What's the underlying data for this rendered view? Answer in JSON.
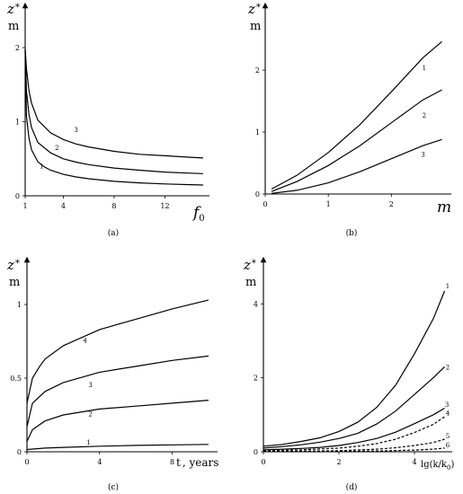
{
  "chart_data": [
    {
      "type": "line",
      "panel_label": "(a)",
      "y_var": "z",
      "y_sub": "*",
      "y_unit": "m",
      "x_var": "f",
      "x_sub": "0",
      "x_unit": "",
      "xlim": [
        1,
        15.5
      ],
      "ylim": [
        0,
        2.4
      ],
      "x_ticks": [
        1,
        4,
        8,
        12
      ],
      "y_ticks": [
        0,
        1,
        2
      ],
      "series": [
        {
          "name": "1",
          "line_style": "solid",
          "label_at": [
            2.3,
            0.37
          ],
          "points": [
            [
              1,
              1.95
            ],
            [
              1.1,
              1.08
            ],
            [
              1.3,
              0.78
            ],
            [
              1.5,
              0.62
            ],
            [
              2,
              0.46
            ],
            [
              2.5,
              0.39
            ],
            [
              3,
              0.345
            ],
            [
              4,
              0.29
            ],
            [
              5,
              0.255
            ],
            [
              6,
              0.23
            ],
            [
              8,
              0.195
            ],
            [
              10,
              0.175
            ],
            [
              12,
              0.16
            ],
            [
              14,
              0.15
            ],
            [
              15,
              0.145
            ]
          ]
        },
        {
          "name": "2",
          "line_style": "solid",
          "label_at": [
            3.5,
            0.62
          ],
          "points": [
            [
              1,
              1.97
            ],
            [
              1.1,
              1.42
            ],
            [
              1.3,
              1.1
            ],
            [
              1.5,
              0.92
            ],
            [
              2,
              0.72
            ],
            [
              3,
              0.58
            ],
            [
              4,
              0.5
            ],
            [
              5,
              0.455
            ],
            [
              6,
              0.42
            ],
            [
              8,
              0.375
            ],
            [
              10,
              0.345
            ],
            [
              12,
              0.32
            ],
            [
              14,
              0.305
            ],
            [
              15,
              0.3
            ]
          ]
        },
        {
          "name": "3",
          "line_style": "solid",
          "label_at": [
            5.0,
            0.86
          ],
          "points": [
            [
              1,
              1.98
            ],
            [
              1.1,
              1.72
            ],
            [
              1.3,
              1.42
            ],
            [
              1.5,
              1.25
            ],
            [
              2,
              1.02
            ],
            [
              3,
              0.85
            ],
            [
              4,
              0.76
            ],
            [
              5,
              0.7
            ],
            [
              6,
              0.66
            ],
            [
              8,
              0.6
            ],
            [
              10,
              0.56
            ],
            [
              12,
              0.54
            ],
            [
              14,
              0.52
            ],
            [
              15,
              0.51
            ]
          ]
        }
      ]
    },
    {
      "type": "line",
      "panel_label": "(b)",
      "y_var": "z",
      "y_sub": "*",
      "y_unit": "m",
      "x_var": "m",
      "x_sub": "",
      "x_unit": "",
      "xlim": [
        0,
        2.95
      ],
      "ylim": [
        0,
        2.9
      ],
      "x_ticks": [
        0,
        1,
        2
      ],
      "y_ticks": [
        0,
        1,
        2
      ],
      "series": [
        {
          "name": "1",
          "line_style": "solid",
          "label_at": [
            2.52,
            2.0
          ],
          "points": [
            [
              0.1,
              0.08
            ],
            [
              0.5,
              0.3
            ],
            [
              1,
              0.67
            ],
            [
              1.5,
              1.12
            ],
            [
              2,
              1.65
            ],
            [
              2.5,
              2.2
            ],
            [
              2.8,
              2.46
            ]
          ]
        },
        {
          "name": "2",
          "line_style": "solid",
          "label_at": [
            2.52,
            1.23
          ],
          "points": [
            [
              0.1,
              0.04
            ],
            [
              0.5,
              0.2
            ],
            [
              1,
              0.46
            ],
            [
              1.5,
              0.78
            ],
            [
              2,
              1.15
            ],
            [
              2.5,
              1.52
            ],
            [
              2.8,
              1.68
            ]
          ]
        },
        {
          "name": "3",
          "line_style": "solid",
          "label_at": [
            2.5,
            0.6
          ],
          "points": [
            [
              0.1,
              0.01
            ],
            [
              0.5,
              0.06
            ],
            [
              1,
              0.18
            ],
            [
              1.5,
              0.36
            ],
            [
              2,
              0.57
            ],
            [
              2.5,
              0.78
            ],
            [
              2.8,
              0.88
            ]
          ]
        }
      ]
    },
    {
      "type": "line",
      "panel_label": "(c)",
      "y_var": "z",
      "y_sub": "*",
      "y_unit": "m",
      "x_var": "t",
      "x_sub": "",
      "x_unit": ", years",
      "xlim": [
        0,
        10.5
      ],
      "ylim": [
        0,
        1.25
      ],
      "x_ticks": [
        0,
        4,
        8
      ],
      "y_ticks": [
        0,
        0.5,
        1
      ],
      "y_tick_labels": [
        "0",
        "0.5",
        "1"
      ],
      "series": [
        {
          "name": "1",
          "line_style": "solid",
          "label_at": [
            3.4,
            0.05
          ],
          "points": [
            [
              0,
              0.015
            ],
            [
              1,
              0.025
            ],
            [
              2,
              0.03
            ],
            [
              4,
              0.038
            ],
            [
              6,
              0.043
            ],
            [
              8,
              0.047
            ],
            [
              10,
              0.05
            ]
          ]
        },
        {
          "name": "2",
          "line_style": "solid",
          "label_at": [
            3.5,
            0.24
          ],
          "points": [
            [
              0,
              0.07
            ],
            [
              0.3,
              0.15
            ],
            [
              1,
              0.21
            ],
            [
              2,
              0.25
            ],
            [
              4,
              0.29
            ],
            [
              6,
              0.31
            ],
            [
              8,
              0.33
            ],
            [
              10,
              0.35
            ]
          ]
        },
        {
          "name": "3",
          "line_style": "solid",
          "label_at": [
            3.5,
            0.44
          ],
          "points": [
            [
              0,
              0.17
            ],
            [
              0.3,
              0.33
            ],
            [
              1,
              0.41
            ],
            [
              2,
              0.47
            ],
            [
              4,
              0.54
            ],
            [
              6,
              0.58
            ],
            [
              8,
              0.62
            ],
            [
              10,
              0.65
            ]
          ]
        },
        {
          "name": "4",
          "line_style": "solid",
          "label_at": [
            3.2,
            0.74
          ],
          "points": [
            [
              0,
              0.33
            ],
            [
              0.3,
              0.5
            ],
            [
              0.7,
              0.58
            ],
            [
              1,
              0.63
            ],
            [
              2,
              0.72
            ],
            [
              4,
              0.83
            ],
            [
              6,
              0.9
            ],
            [
              8,
              0.97
            ],
            [
              10,
              1.03
            ]
          ]
        }
      ]
    },
    {
      "type": "line",
      "panel_label": "(d)",
      "y_var": "z",
      "y_sub": "*",
      "y_unit": "m",
      "x_var": "lg(k/k",
      "x_sub": "0",
      "x_unit": ")",
      "xlim": [
        0,
        5.0
      ],
      "ylim": [
        0,
        5.1
      ],
      "x_ticks": [
        0,
        2,
        4
      ],
      "y_ticks": [
        0,
        2,
        4
      ],
      "series": [
        {
          "name": "1",
          "line_style": "solid",
          "label_at": [
            4.88,
            4.42
          ],
          "points": [
            [
              0,
              0.15
            ],
            [
              0.5,
              0.2
            ],
            [
              1,
              0.28
            ],
            [
              1.5,
              0.38
            ],
            [
              2,
              0.55
            ],
            [
              2.5,
              0.8
            ],
            [
              3,
              1.2
            ],
            [
              3.5,
              1.8
            ],
            [
              4,
              2.65
            ],
            [
              4.5,
              3.6
            ],
            [
              4.8,
              4.35
            ]
          ]
        },
        {
          "name": "2",
          "line_style": "solid",
          "label_at": [
            4.88,
            2.22
          ],
          "points": [
            [
              0,
              0.1
            ],
            [
              0.5,
              0.14
            ],
            [
              1,
              0.19
            ],
            [
              1.5,
              0.26
            ],
            [
              2,
              0.36
            ],
            [
              2.5,
              0.5
            ],
            [
              3,
              0.75
            ],
            [
              3.5,
              1.1
            ],
            [
              4,
              1.55
            ],
            [
              4.5,
              2.0
            ],
            [
              4.8,
              2.3
            ]
          ]
        },
        {
          "name": "3",
          "line_style": "solid",
          "label_at": [
            4.86,
            1.22
          ],
          "points": [
            [
              0,
              0.05
            ],
            [
              0.5,
              0.07
            ],
            [
              1,
              0.09
            ],
            [
              1.5,
              0.12
            ],
            [
              2,
              0.17
            ],
            [
              2.5,
              0.25
            ],
            [
              3,
              0.36
            ],
            [
              3.5,
              0.53
            ],
            [
              4,
              0.76
            ],
            [
              4.5,
              1.0
            ],
            [
              4.8,
              1.18
            ]
          ]
        },
        {
          "name": "4",
          "line_style": "dashed",
          "label_at": [
            4.88,
            0.98
          ],
          "points": [
            [
              0,
              0.03
            ],
            [
              1,
              0.05
            ],
            [
              2,
              0.1
            ],
            [
              2.5,
              0.15
            ],
            [
              3,
              0.22
            ],
            [
              3.5,
              0.34
            ],
            [
              4,
              0.52
            ],
            [
              4.5,
              0.74
            ],
            [
              4.8,
              0.95
            ]
          ]
        },
        {
          "name": "5",
          "line_style": "dashed",
          "label_at": [
            4.88,
            0.37
          ],
          "points": [
            [
              0,
              0.01
            ],
            [
              1,
              0.015
            ],
            [
              2,
              0.03
            ],
            [
              3,
              0.07
            ],
            [
              3.5,
              0.11
            ],
            [
              4,
              0.17
            ],
            [
              4.5,
              0.25
            ],
            [
              4.8,
              0.34
            ]
          ]
        },
        {
          "name": "6",
          "line_style": "dashed",
          "label_at": [
            4.88,
            0.12
          ],
          "points": [
            [
              0,
              0.003
            ],
            [
              1,
              0.005
            ],
            [
              2,
              0.01
            ],
            [
              3,
              0.02
            ],
            [
              4,
              0.045
            ],
            [
              4.5,
              0.07
            ],
            [
              4.8,
              0.1
            ]
          ]
        }
      ]
    }
  ]
}
